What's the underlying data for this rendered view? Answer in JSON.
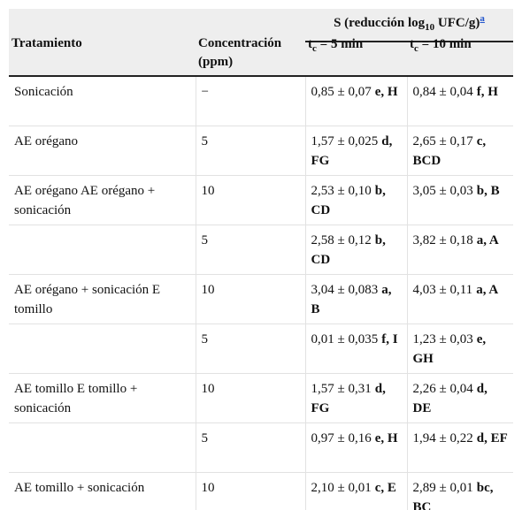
{
  "header": {
    "group": {
      "pre": "S (reducción log",
      "sub": "10",
      "post": " UFC/g)",
      "note": "a"
    },
    "treatment": "Tratamiento",
    "concentration": "Concentración (ppm)",
    "t5": {
      "t": "t",
      "sub": "c",
      "rest": " = 5 min"
    },
    "t10": {
      "t": "t",
      "sub": "c",
      "rest": " = 10 min"
    }
  },
  "table": {
    "rows": [
      [
        "Sonicación",
        "−",
        {
          "value": "0,85 ± 0,07",
          "letters": "e, H"
        },
        {
          "value": "0,84 ± 0,04",
          "letters": "f, H"
        }
      ],
      [
        "AE orégano",
        "5",
        {
          "value": "1,57 ± 0,025",
          "letters": "d, FG"
        },
        {
          "value": "2,65 ± 0,17",
          "letters": "c, BCD"
        }
      ],
      [
        "AE orégano AE orégano + sonicación",
        "10",
        {
          "value": "2,53 ± 0,10",
          "letters": "b, CD"
        },
        {
          "value": "3,05 ± 0,03",
          "letters": "b, B"
        }
      ],
      [
        null,
        "5",
        {
          "value": "2,58 ± 0,12",
          "letters": "b, CD"
        },
        {
          "value": "3,82 ± 0,18",
          "letters": "a, A"
        }
      ],
      [
        "AE orégano + sonicación E tomillo",
        "10",
        {
          "value": "3,04 ± 0,083",
          "letters": "a, B"
        },
        {
          "value": "4,03 ± 0,11",
          "letters": "a, A"
        }
      ],
      [
        null,
        "5",
        {
          "value": "0,01 ± 0,035",
          "letters": "f, I"
        },
        {
          "value": "1,23 ± 0,03",
          "letters": "e, GH"
        }
      ],
      [
        "AE tomillo E tomillo + sonicación",
        "10",
        {
          "value": "1,57 ± 0,31",
          "letters": "d, FG"
        },
        {
          "value": "2,26 ± 0,04",
          "letters": "d, DE"
        }
      ],
      [
        null,
        "5",
        {
          "value": "0,97 ± 0,16",
          "letters": "e, H"
        },
        {
          "value": "1,94 ± 0,22",
          "letters": "d, EF"
        }
      ],
      [
        "AE tomillo + sonicación",
        "10",
        {
          "value": "2,10 ± 0,01",
          "letters": "c, E"
        },
        {
          "value": "2,89 ± 0,01",
          "letters": "bc, BC"
        }
      ]
    ]
  }
}
